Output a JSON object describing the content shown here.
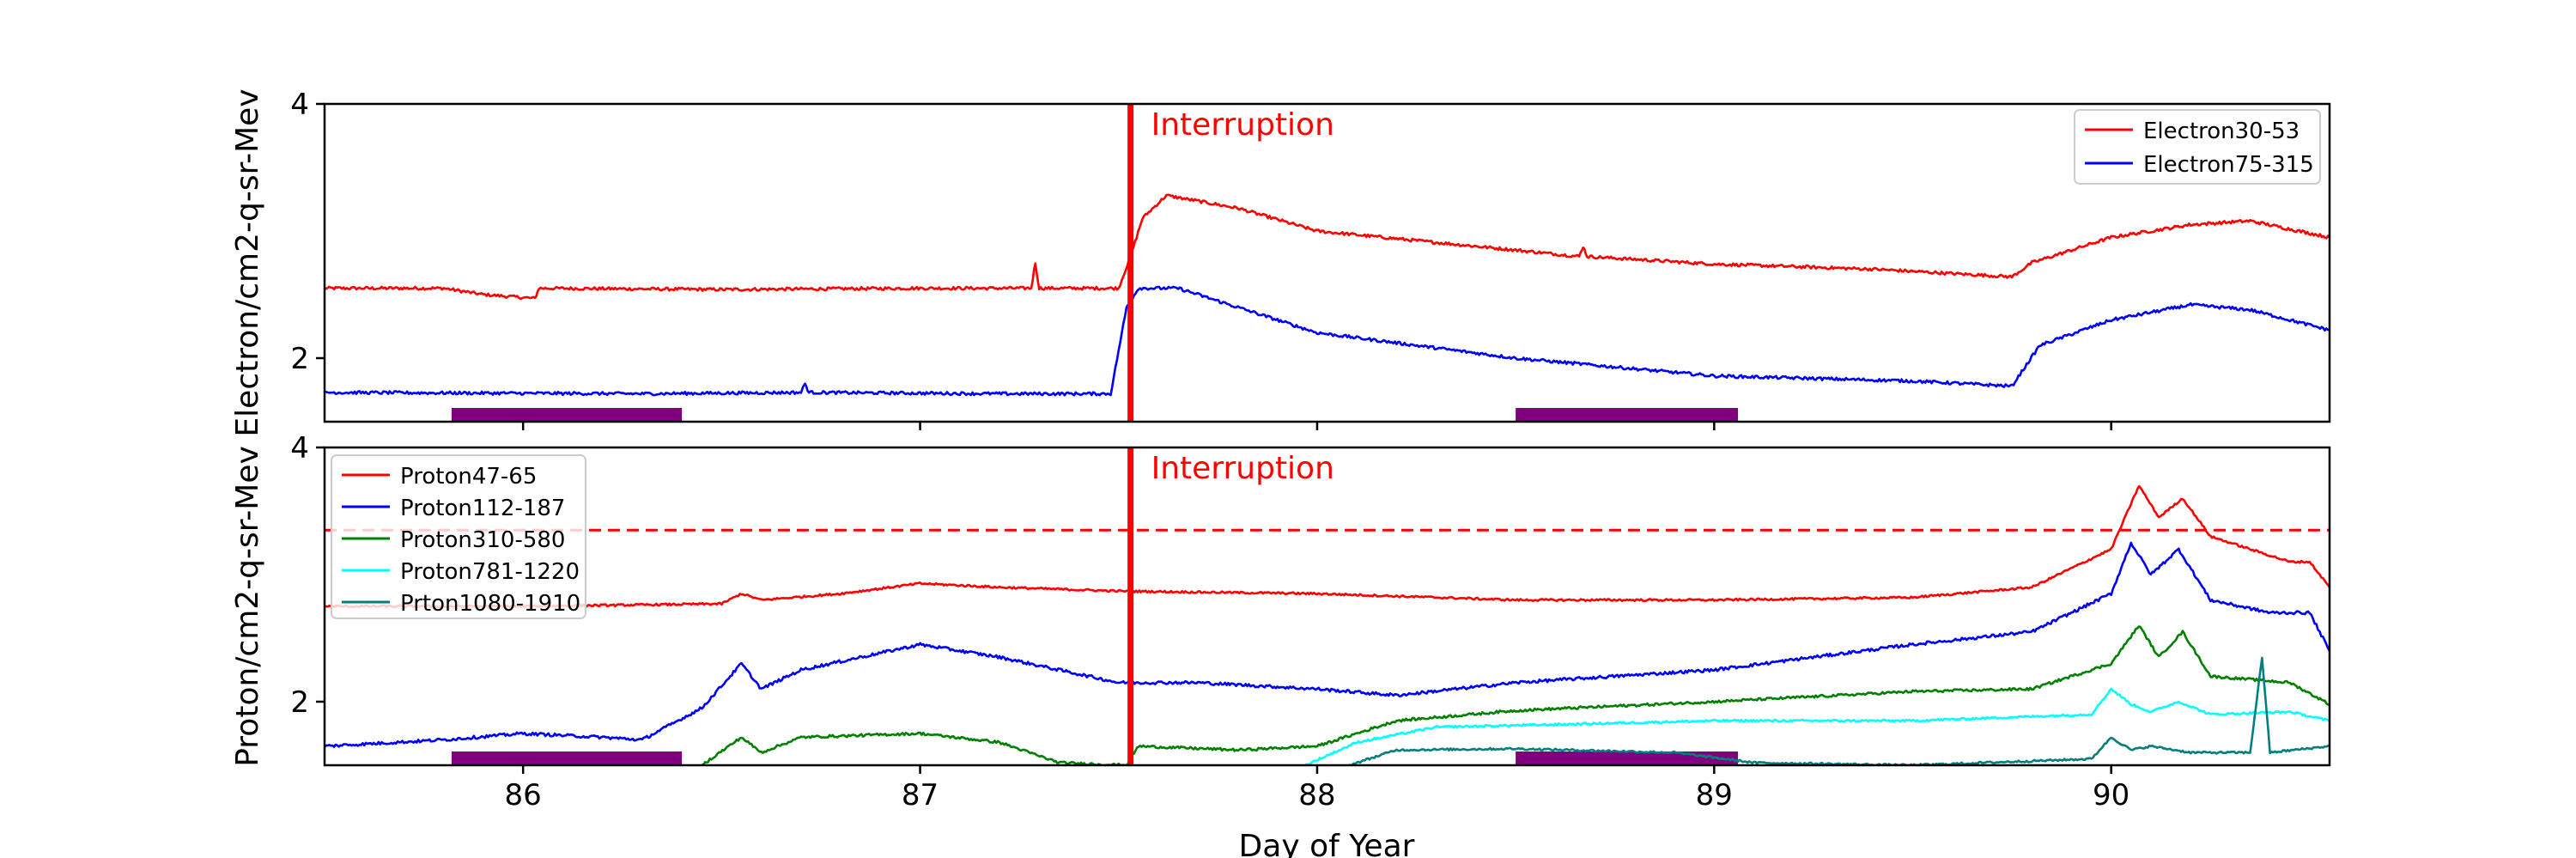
{
  "chart_data": [
    {
      "type": "line",
      "panel": "top",
      "ylabel": "Electron/cm2-q-sr-Mev",
      "xlim": [
        85.5,
        90.55
      ],
      "ylim": [
        1.5,
        4
      ],
      "yticks": [
        {
          "v": 2,
          "label": "2"
        },
        {
          "v": 4,
          "label": "4"
        }
      ],
      "xticks_unlabeled": [
        86,
        87,
        88,
        89,
        90
      ],
      "legend": {
        "position": "top-right",
        "entries": [
          "Electron30-53",
          "Electron75-315"
        ]
      },
      "annotation": {
        "text": "Interruption",
        "x": 87.53
      },
      "shaded_bars": [
        [
          85.82,
          86.4
        ],
        [
          88.5,
          89.06
        ]
      ],
      "series": [
        {
          "name": "Electron30-53",
          "color": "#ff0000",
          "noise": 0.012,
          "points": [
            [
              85.5,
              2.55
            ],
            [
              85.8,
              2.55
            ],
            [
              85.9,
              2.5
            ],
            [
              86.03,
              2.47
            ],
            [
              86.04,
              2.55
            ],
            [
              86.5,
              2.54
            ],
            [
              87.0,
              2.55
            ],
            [
              87.28,
              2.55
            ],
            [
              87.29,
              2.75
            ],
            [
              87.3,
              2.55
            ],
            [
              87.5,
              2.55
            ],
            [
              87.53,
              2.8
            ],
            [
              87.56,
              3.1
            ],
            [
              87.62,
              3.28
            ],
            [
              87.8,
              3.18
            ],
            [
              88.0,
              3.0
            ],
            [
              88.5,
              2.85
            ],
            [
              88.66,
              2.8
            ],
            [
              88.67,
              2.88
            ],
            [
              88.68,
              2.8
            ],
            [
              89.0,
              2.74
            ],
            [
              89.4,
              2.7
            ],
            [
              89.75,
              2.64
            ],
            [
              89.8,
              2.75
            ],
            [
              90.0,
              2.95
            ],
            [
              90.2,
              3.05
            ],
            [
              90.35,
              3.08
            ],
            [
              90.55,
              2.95
            ]
          ]
        },
        {
          "name": "Electron75-315",
          "color": "#0000ff",
          "noise": 0.012,
          "points": [
            [
              85.5,
              1.73
            ],
            [
              86.3,
              1.72
            ],
            [
              86.7,
              1.73
            ],
            [
              86.71,
              1.8
            ],
            [
              86.72,
              1.73
            ],
            [
              87.2,
              1.72
            ],
            [
              87.48,
              1.72
            ],
            [
              87.52,
              2.4
            ],
            [
              87.55,
              2.55
            ],
            [
              87.65,
              2.55
            ],
            [
              87.8,
              2.4
            ],
            [
              88.0,
              2.2
            ],
            [
              88.5,
              2.0
            ],
            [
              89.0,
              1.86
            ],
            [
              89.5,
              1.82
            ],
            [
              89.75,
              1.78
            ],
            [
              89.82,
              2.1
            ],
            [
              90.0,
              2.3
            ],
            [
              90.2,
              2.42
            ],
            [
              90.35,
              2.38
            ],
            [
              90.55,
              2.22
            ]
          ]
        }
      ]
    },
    {
      "type": "line",
      "panel": "bottom",
      "ylabel": "Proton/cm2-q-sr-Mev",
      "xlabel": "Day of Year",
      "xlim": [
        85.5,
        90.55
      ],
      "ylim": [
        1.5,
        4
      ],
      "yticks": [
        {
          "v": 2,
          "label": "2"
        },
        {
          "v": 4,
          "label": "4"
        }
      ],
      "xticks": [
        {
          "v": 86,
          "label": "86"
        },
        {
          "v": 87,
          "label": "87"
        },
        {
          "v": 88,
          "label": "88"
        },
        {
          "v": 89,
          "label": "89"
        },
        {
          "v": 90,
          "label": "90"
        }
      ],
      "legend": {
        "position": "top-left",
        "entries": [
          "Proton47-65",
          "Proton112-187",
          "Proton310-580",
          "Proton781-1220",
          "Prton1080-1910"
        ]
      },
      "annotation": {
        "text": "Interruption",
        "x": 87.53
      },
      "hline": {
        "y": 3.35,
        "color": "#ff0000",
        "style": "dashed"
      },
      "shaded_bars": [
        [
          85.82,
          86.4
        ],
        [
          88.5,
          89.06
        ]
      ],
      "series": [
        {
          "name": "Proton47-65",
          "color": "#ff0000",
          "noise": 0.008,
          "points": [
            [
              85.5,
              2.75
            ],
            [
              86.0,
              2.75
            ],
            [
              86.5,
              2.77
            ],
            [
              86.55,
              2.85
            ],
            [
              86.6,
              2.8
            ],
            [
              86.8,
              2.85
            ],
            [
              87.0,
              2.93
            ],
            [
              87.2,
              2.9
            ],
            [
              87.5,
              2.87
            ],
            [
              88.0,
              2.85
            ],
            [
              88.5,
              2.8
            ],
            [
              89.0,
              2.8
            ],
            [
              89.5,
              2.82
            ],
            [
              89.8,
              2.9
            ],
            [
              90.0,
              3.2
            ],
            [
              90.07,
              3.7
            ],
            [
              90.12,
              3.45
            ],
            [
              90.18,
              3.6
            ],
            [
              90.25,
              3.3
            ],
            [
              90.4,
              3.15
            ],
            [
              90.45,
              3.1
            ],
            [
              90.5,
              3.1
            ],
            [
              90.55,
              2.9
            ]
          ]
        },
        {
          "name": "Proton112-187",
          "color": "#0000ff",
          "noise": 0.012,
          "points": [
            [
              85.5,
              1.65
            ],
            [
              85.8,
              1.7
            ],
            [
              86.0,
              1.75
            ],
            [
              86.2,
              1.72
            ],
            [
              86.3,
              1.7
            ],
            [
              86.45,
              1.95
            ],
            [
              86.55,
              2.3
            ],
            [
              86.6,
              2.1
            ],
            [
              86.7,
              2.25
            ],
            [
              87.0,
              2.45
            ],
            [
              87.2,
              2.35
            ],
            [
              87.5,
              2.15
            ],
            [
              87.7,
              2.15
            ],
            [
              88.0,
              2.1
            ],
            [
              88.2,
              2.05
            ],
            [
              88.5,
              2.15
            ],
            [
              89.0,
              2.25
            ],
            [
              89.5,
              2.45
            ],
            [
              89.8,
              2.55
            ],
            [
              90.0,
              2.85
            ],
            [
              90.05,
              3.25
            ],
            [
              90.1,
              3.0
            ],
            [
              90.17,
              3.2
            ],
            [
              90.25,
              2.8
            ],
            [
              90.4,
              2.7
            ],
            [
              90.5,
              2.7
            ],
            [
              90.55,
              2.4
            ]
          ]
        },
        {
          "name": "Proton310-580",
          "color": "#008000",
          "noise": 0.01,
          "points": [
            [
              86.45,
              1.5
            ],
            [
              86.55,
              1.72
            ],
            [
              86.6,
              1.6
            ],
            [
              86.7,
              1.72
            ],
            [
              87.0,
              1.75
            ],
            [
              87.2,
              1.68
            ],
            [
              87.35,
              1.52
            ],
            [
              87.52,
              1.5
            ],
            [
              87.55,
              1.65
            ],
            [
              87.8,
              1.62
            ],
            [
              88.0,
              1.65
            ],
            [
              88.2,
              1.85
            ],
            [
              88.5,
              1.93
            ],
            [
              89.0,
              2.0
            ],
            [
              89.5,
              2.08
            ],
            [
              89.8,
              2.1
            ],
            [
              90.0,
              2.3
            ],
            [
              90.07,
              2.6
            ],
            [
              90.12,
              2.35
            ],
            [
              90.18,
              2.55
            ],
            [
              90.25,
              2.2
            ],
            [
              90.45,
              2.15
            ],
            [
              90.55,
              1.98
            ]
          ]
        },
        {
          "name": "Proton781-1220",
          "color": "#00ffff",
          "noise": 0.008,
          "points": [
            [
              87.97,
              1.5
            ],
            [
              88.1,
              1.68
            ],
            [
              88.3,
              1.8
            ],
            [
              88.6,
              1.82
            ],
            [
              89.0,
              1.85
            ],
            [
              89.5,
              1.85
            ],
            [
              89.95,
              1.9
            ],
            [
              90.0,
              2.1
            ],
            [
              90.05,
              1.98
            ],
            [
              90.1,
              1.92
            ],
            [
              90.17,
              2.0
            ],
            [
              90.25,
              1.9
            ],
            [
              90.45,
              1.92
            ],
            [
              90.55,
              1.85
            ]
          ]
        },
        {
          "name": "Prton1080-1910",
          "color": "#007f7f",
          "noise": 0.008,
          "points": [
            [
              88.08,
              1.5
            ],
            [
              88.2,
              1.62
            ],
            [
              88.5,
              1.63
            ],
            [
              88.9,
              1.6
            ],
            [
              89.1,
              1.52
            ],
            [
              89.5,
              1.5
            ],
            [
              89.95,
              1.55
            ],
            [
              90.0,
              1.72
            ],
            [
              90.05,
              1.62
            ],
            [
              90.1,
              1.65
            ],
            [
              90.2,
              1.6
            ],
            [
              90.35,
              1.6
            ],
            [
              90.38,
              2.35
            ],
            [
              90.4,
              1.6
            ],
            [
              90.55,
              1.65
            ]
          ]
        }
      ]
    }
  ]
}
